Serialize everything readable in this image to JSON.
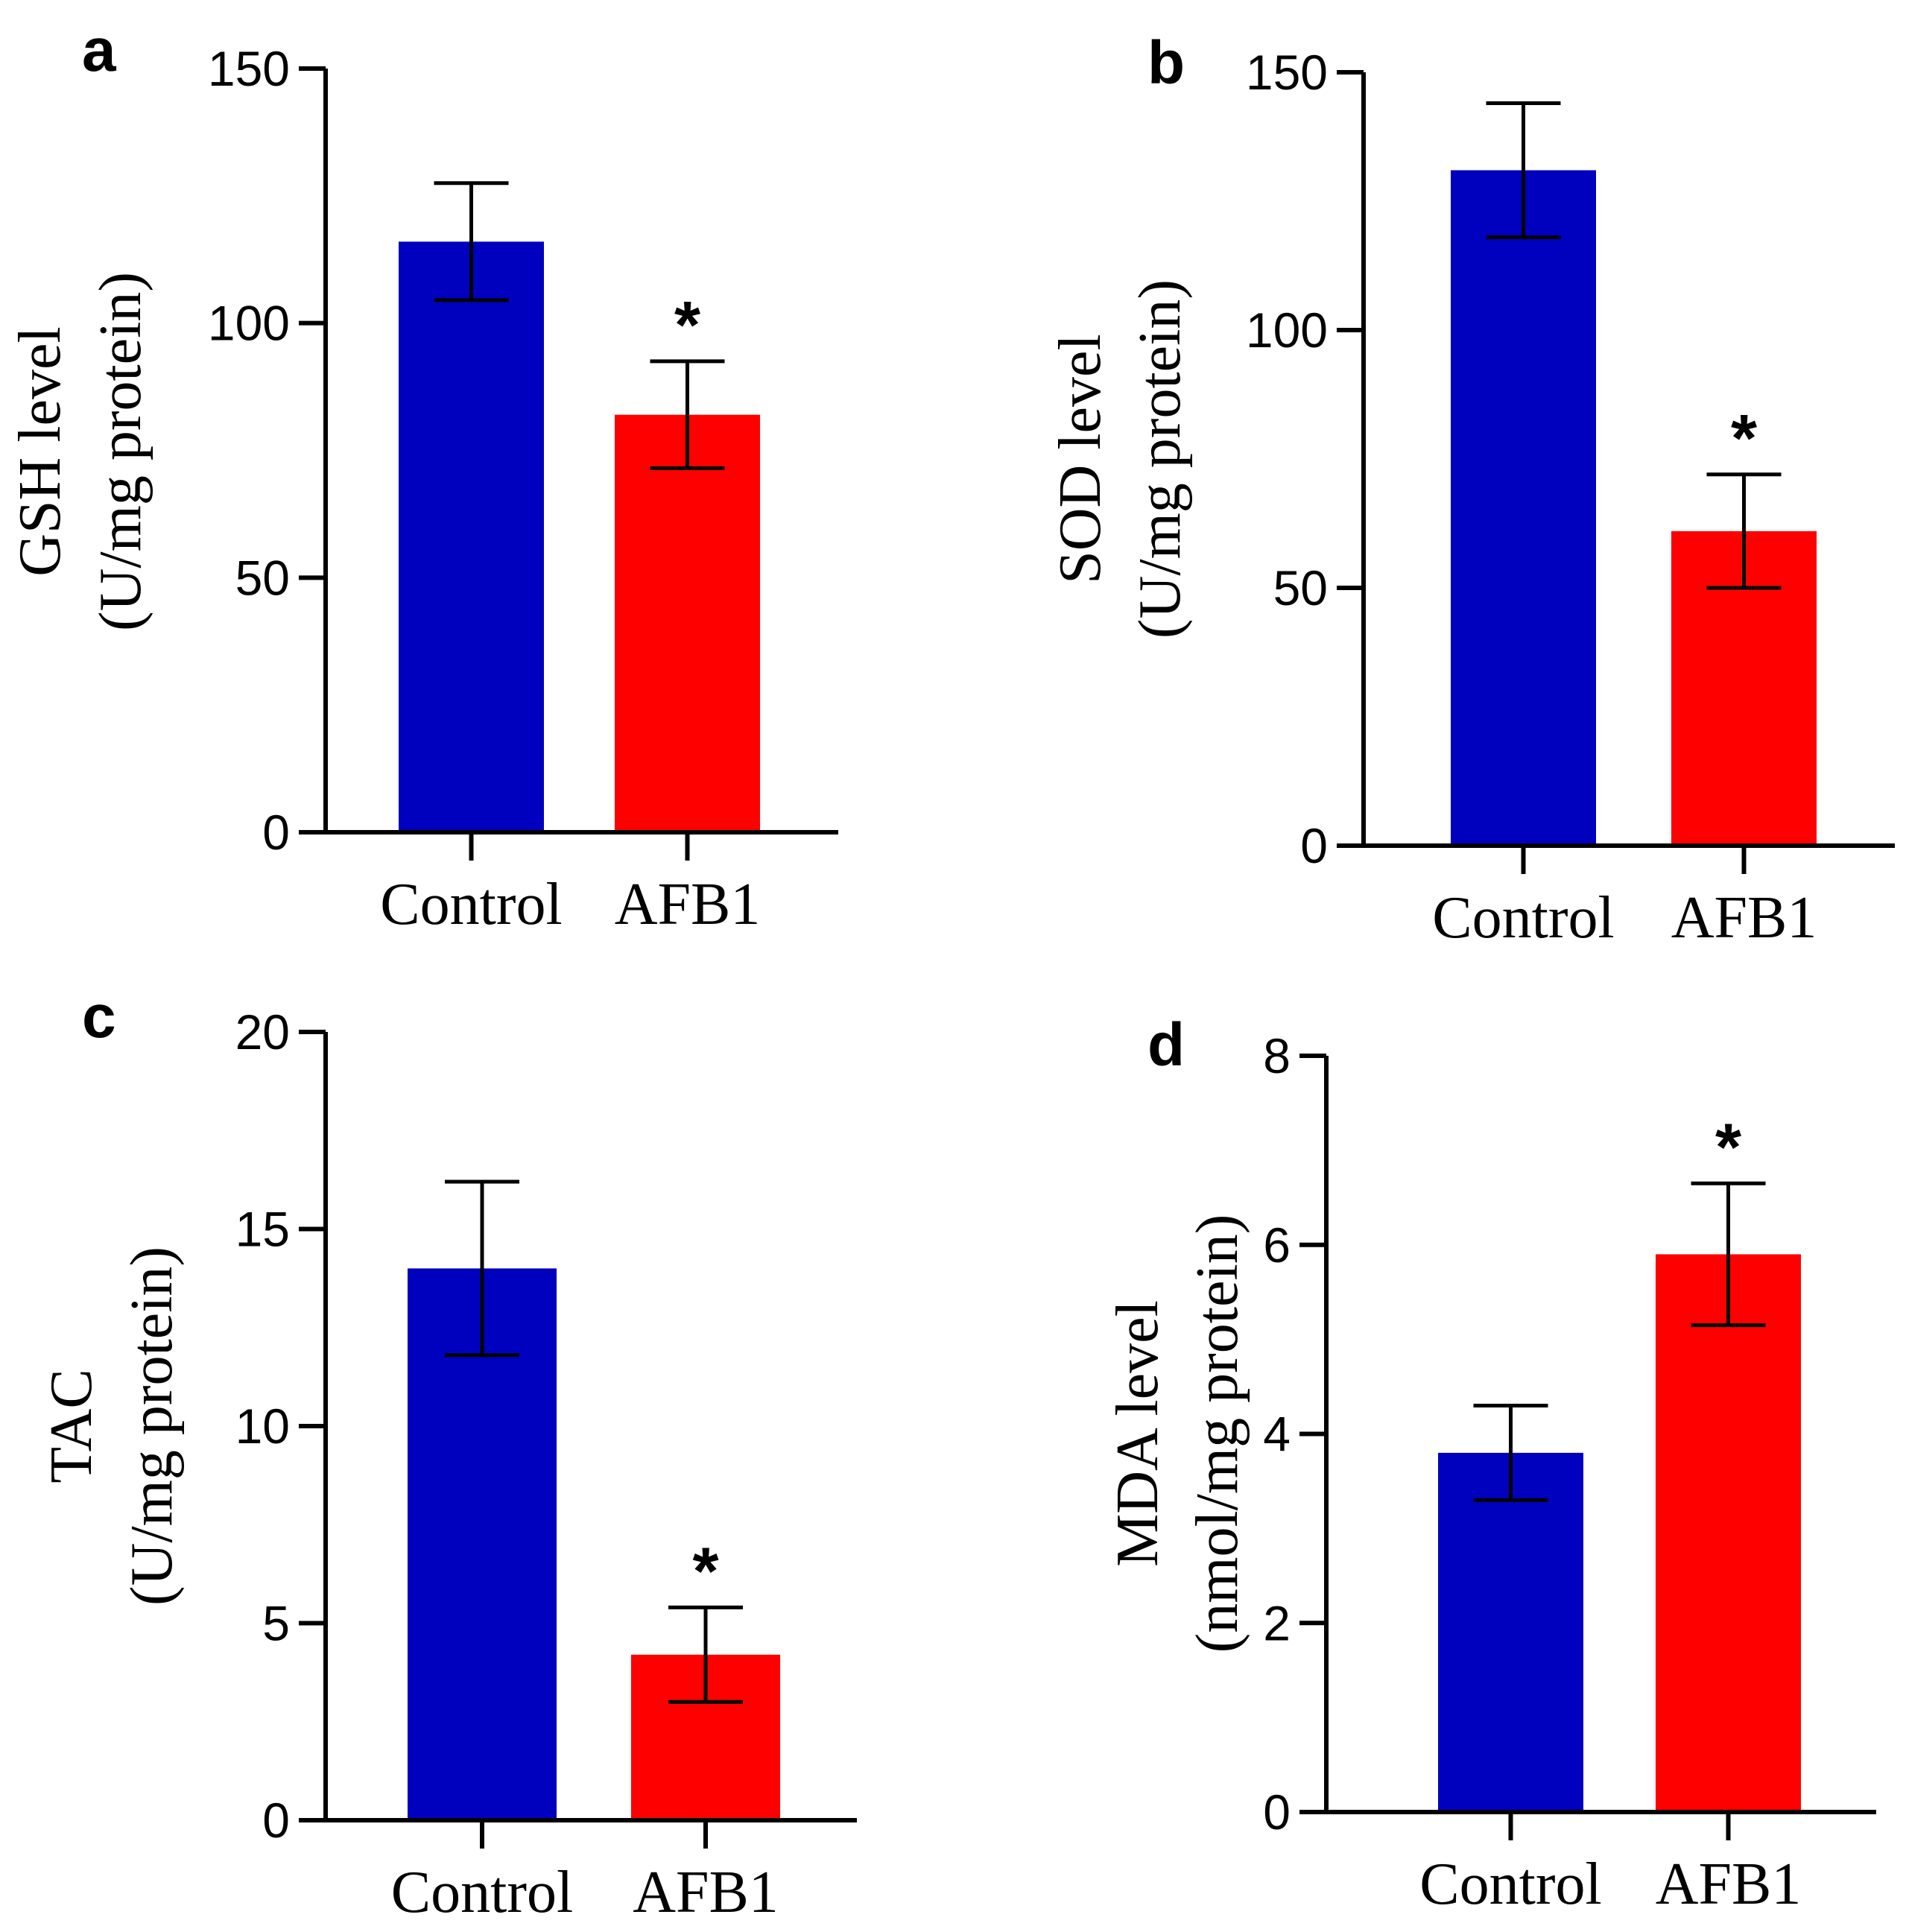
{
  "colors": {
    "control": "#0000BF",
    "afb1": "#FF0000",
    "axis": "#000000"
  },
  "chart_data": [
    {
      "type": "bar",
      "panel_label": "a",
      "ylabel": "GSH level",
      "ylabel_unit": "(U/mg protein)",
      "categories": [
        "Control",
        "AFB1"
      ],
      "values": [
        116,
        82
      ],
      "errors": [
        11.5,
        10.5
      ],
      "significance": [
        "",
        "*"
      ],
      "ylim": [
        0,
        150
      ],
      "yticks": [
        0,
        50,
        100,
        150
      ],
      "ytick_labels": [
        "0",
        "50",
        "100",
        "150"
      ]
    },
    {
      "type": "bar",
      "panel_label": "b",
      "ylabel": "SOD level",
      "ylabel_unit": "(U/mg protein)",
      "categories": [
        "Control",
        "AFB1"
      ],
      "values": [
        131,
        61
      ],
      "errors": [
        13,
        11
      ],
      "significance": [
        "",
        "*"
      ],
      "ylim": [
        0,
        150
      ],
      "yticks": [
        0,
        50,
        100,
        150
      ],
      "ytick_labels": [
        "0",
        "50",
        "100",
        "150"
      ]
    },
    {
      "type": "bar",
      "panel_label": "c",
      "ylabel": "TAC",
      "ylabel_unit": "(U/mg protein)",
      "categories": [
        "Control",
        "AFB1"
      ],
      "values": [
        14,
        4.2
      ],
      "errors": [
        2.2,
        1.2
      ],
      "significance": [
        "",
        "*"
      ],
      "ylim": [
        0,
        20
      ],
      "yticks": [
        0,
        5,
        10,
        15,
        20
      ],
      "ytick_labels": [
        "0",
        "5",
        "10",
        "15",
        "20"
      ]
    },
    {
      "type": "bar",
      "panel_label": "d",
      "ylabel": "MDA level",
      "ylabel_unit": "(nmol/mg protein)",
      "categories": [
        "Control",
        "AFB1"
      ],
      "values": [
        3.8,
        5.9
      ],
      "errors": [
        0.5,
        0.75
      ],
      "significance": [
        "",
        "*"
      ],
      "ylim": [
        0,
        8
      ],
      "yticks": [
        0,
        2,
        4,
        6,
        8
      ],
      "ytick_labels": [
        "0",
        "2",
        "4",
        "6",
        "8"
      ]
    }
  ]
}
